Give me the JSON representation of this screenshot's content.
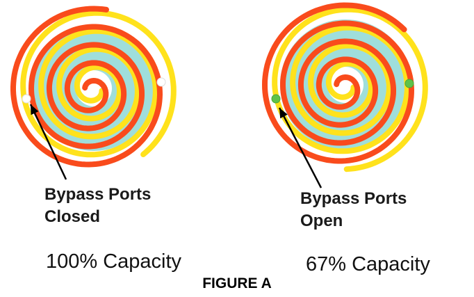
{
  "colors": {
    "fixed_scroll": "#f94b1c",
    "orbiting_scroll": "#ffe21c",
    "compression_pocket": "#9fdedb",
    "port_closed": "#ffffff",
    "port_open": "#5fc24a",
    "arrow": "#000000"
  },
  "left_panel": {
    "label_line1": "Bypass Ports",
    "label_line2": "Closed",
    "capacity": "100% Capacity",
    "ports_state": "closed"
  },
  "right_panel": {
    "label_line1": "Bypass Ports",
    "label_line2": "Open",
    "capacity": "67% Capacity",
    "ports_state": "open"
  },
  "caption": "FIGURE A"
}
